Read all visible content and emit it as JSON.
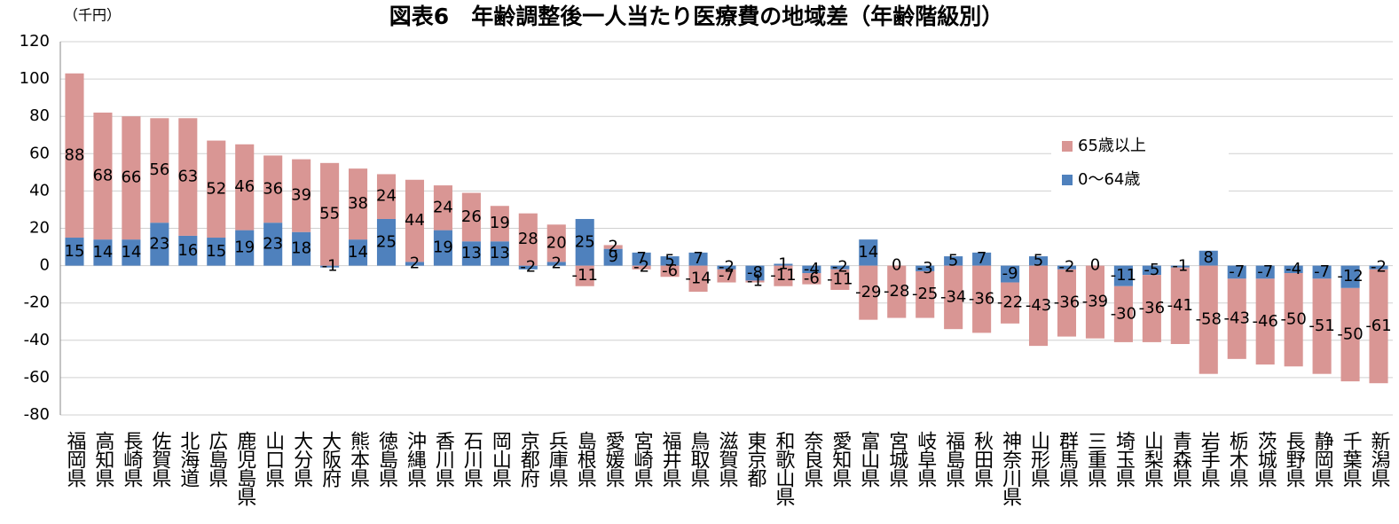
{
  "chart_data": {
    "type": "bar",
    "stacked": true,
    "title": "図表6　年齢調整後一人当たり医療費の地域差（年齢階級別）",
    "y_unit": "（千円）",
    "categories": [
      "福岡県",
      "高知県",
      "長崎県",
      "佐賀県",
      "北海道",
      "広島県",
      "鹿児島県",
      "山口県",
      "大分県",
      "大阪府",
      "熊本県",
      "徳島県",
      "沖縄県",
      "香川県",
      "石川県",
      "岡山県",
      "京都府",
      "兵庫県",
      "島根県",
      "愛媛県",
      "宮崎県",
      "福井県",
      "鳥取県",
      "滋賀県",
      "東京都",
      "和歌山県",
      "奈良県",
      "愛知県",
      "富山県",
      "宮城県",
      "岐阜県",
      "福島県",
      "秋田県",
      "神奈川県",
      "山形県",
      "群馬県",
      "三重県",
      "埼玉県",
      "山梨県",
      "青森県",
      "岩手県",
      "栃木県",
      "茨城県",
      "長野県",
      "静岡県",
      "千葉県",
      "新潟県"
    ],
    "series": [
      {
        "name": "0〜64歳",
        "color": "#4f81bd",
        "values": [
          15,
          14,
          14,
          23,
          16,
          15,
          19,
          23,
          18,
          -1,
          14,
          25,
          2,
          19,
          13,
          13,
          -2,
          2,
          25,
          9,
          7,
          5,
          7,
          -2,
          -8,
          1,
          -4,
          -2,
          14,
          0,
          -3,
          5,
          7,
          -9,
          5,
          -2,
          0,
          -11,
          -5,
          -1,
          8,
          -7,
          -7,
          -4,
          -7,
          -12,
          -2
        ]
      },
      {
        "name": "65歳以上",
        "color": "#d99694",
        "values": [
          88,
          68,
          66,
          56,
          63,
          52,
          46,
          36,
          39,
          55,
          38,
          24,
          44,
          24,
          26,
          19,
          28,
          20,
          -11,
          2,
          -2,
          -6,
          -14,
          -7,
          -1,
          -11,
          -6,
          -11,
          -29,
          -28,
          -25,
          -34,
          -36,
          -22,
          -43,
          -36,
          -39,
          -30,
          -36,
          -41,
          -58,
          -43,
          -46,
          -50,
          -51,
          -50,
          -61
        ]
      }
    ],
    "ylim": [
      -80,
      120
    ],
    "yticks": [
      -80,
      -60,
      -40,
      -20,
      0,
      20,
      40,
      60,
      80,
      100,
      120
    ],
    "grid": true,
    "legend": "upper right"
  }
}
